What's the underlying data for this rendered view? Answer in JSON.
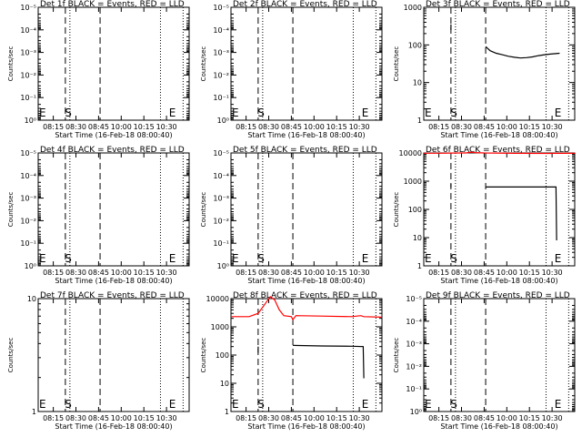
{
  "chart_data": [
    {
      "type": "line",
      "title": "Det 1f BLACK = Events, RED = LLD",
      "xlabel": "Start Time (16-Feb-18 08:00:40)",
      "ylabel": "Counts/sec",
      "scale": "log",
      "ylim": [
        1,
        1e-05
      ],
      "yticks": [
        1,
        0.1,
        0.01,
        0.001,
        0.0001,
        1e-05
      ],
      "ytick_labels": [
        "10⁰",
        "10⁻¹",
        "10⁻²",
        "10⁻³",
        "10⁻⁴",
        "10⁻⁵"
      ],
      "xticks": [
        "08:15",
        "08:30",
        "08:45",
        "10:00",
        "10:15",
        "10:30"
      ],
      "markers": [
        {
          "label": "E",
          "x": 0
        },
        {
          "label": "S",
          "x": 0.85
        },
        {
          "label": "E",
          "x": 4.3
        }
      ],
      "series": []
    },
    {
      "type": "line",
      "title": "Det 2f BLACK = Events, RED = LLD",
      "xlabel": "Start Time (16-Feb-18 08:00:40)",
      "ylabel": "Counts/sec",
      "scale": "log",
      "ylim": [
        1,
        1e-05
      ],
      "yticks": [
        1,
        0.1,
        0.01,
        0.001,
        0.0001,
        1e-05
      ],
      "ytick_labels": [
        "10⁰",
        "10⁻¹",
        "10⁻²",
        "10⁻³",
        "10⁻⁴",
        "10⁻⁵"
      ],
      "xticks": [
        "08:15",
        "08:30",
        "08:45",
        "10:00",
        "10:15",
        "10:30"
      ],
      "markers": [
        {
          "label": "E",
          "x": 0
        },
        {
          "label": "S",
          "x": 0.85
        },
        {
          "label": "E",
          "x": 4.3
        }
      ],
      "series": []
    },
    {
      "type": "line",
      "title": "Det 3f BLACK = Events, RED = LLD",
      "xlabel": "Start Time (16-Feb-18 08:00:40)",
      "ylabel": "Counts/sec",
      "scale": "log",
      "ylim": [
        1,
        1000
      ],
      "yticks": [
        1,
        10,
        100,
        1000
      ],
      "ytick_labels": [
        "1",
        "10",
        "100",
        "1000"
      ],
      "xticks": [
        "08:15",
        "08:30",
        "08:45",
        "10:00",
        "10:15",
        "10:30"
      ],
      "markers": [
        {
          "label": "E",
          "x": 0
        },
        {
          "label": "S",
          "x": 0.85
        },
        {
          "label": "E",
          "x": 4.3
        }
      ],
      "series": [
        {
          "color": "#000000",
          "points": [
            [
              0.9,
              250
            ],
            [
              0.9,
              350
            ]
          ]
        },
        {
          "color": "#000000",
          "points": [
            [
              2.05,
              90
            ],
            [
              2.2,
              70
            ],
            [
              2.4,
              60
            ],
            [
              2.6,
              55
            ],
            [
              2.8,
              50
            ],
            [
              3.0,
              47
            ],
            [
              3.2,
              45
            ],
            [
              3.4,
              46
            ],
            [
              3.6,
              48
            ],
            [
              3.8,
              52
            ],
            [
              4.0,
              55
            ],
            [
              4.2,
              57
            ],
            [
              4.5,
              60
            ]
          ]
        }
      ]
    },
    {
      "type": "line",
      "title": "Det 4f BLACK = Events, RED = LLD",
      "xlabel": "Start Time (16-Feb-18 08:00:40)",
      "ylabel": "Counts/sec",
      "scale": "log",
      "ylim": [
        1,
        1e-05
      ],
      "yticks": [
        1,
        0.1,
        0.01,
        0.001,
        0.0001,
        1e-05
      ],
      "ytick_labels": [
        "10⁰",
        "10⁻¹",
        "10⁻²",
        "10⁻³",
        "10⁻⁴",
        "10⁻⁵"
      ],
      "xticks": [
        "08:15",
        "08:30",
        "08:45",
        "10:00",
        "10:15",
        "10:30"
      ],
      "markers": [
        {
          "label": "E",
          "x": 0
        },
        {
          "label": "S",
          "x": 0.85
        },
        {
          "label": "E",
          "x": 4.3
        }
      ],
      "series": []
    },
    {
      "type": "line",
      "title": "Det 5f BLACK = Events, RED = LLD",
      "xlabel": "Start Time (16-Feb-18 08:00:40)",
      "ylabel": "Counts/sec",
      "scale": "log",
      "ylim": [
        1,
        1e-05
      ],
      "yticks": [
        1,
        0.1,
        0.01,
        0.001,
        0.0001,
        1e-05
      ],
      "ytick_labels": [
        "10⁰",
        "10⁻¹",
        "10⁻²",
        "10⁻³",
        "10⁻⁴",
        "10⁻⁵"
      ],
      "xticks": [
        "08:15",
        "08:30",
        "08:45",
        "10:00",
        "10:15",
        "10:30"
      ],
      "markers": [
        {
          "label": "E",
          "x": 0
        },
        {
          "label": "S",
          "x": 0.85
        },
        {
          "label": "E",
          "x": 4.3
        }
      ],
      "series": []
    },
    {
      "type": "line",
      "title": "Det 6f BLACK = Events, RED = LLD",
      "xlabel": "Start Time (16-Feb-18 08:00:40)",
      "ylabel": "Counts/sec",
      "scale": "log",
      "ylim": [
        1,
        10000
      ],
      "yticks": [
        1,
        10,
        100,
        1000,
        10000
      ],
      "ytick_labels": [
        "1",
        "10",
        "100",
        "1000",
        "10000"
      ],
      "xticks": [
        "08:15",
        "08:30",
        "08:45",
        "10:00",
        "10:15",
        "10:30"
      ],
      "markers": [
        {
          "label": "E",
          "x": 0
        },
        {
          "label": "S",
          "x": 0.85
        },
        {
          "label": "E",
          "x": 4.3
        }
      ],
      "series": [
        {
          "color": "#ff0000",
          "points": [
            [
              0,
              9800
            ],
            [
              0.6,
              9800
            ],
            [
              0.9,
              9900
            ],
            [
              1.4,
              10000
            ],
            [
              1.55,
              10700
            ],
            [
              1.7,
              10300
            ],
            [
              2.0,
              10000
            ],
            [
              3.0,
              9700
            ],
            [
              4.2,
              9600
            ],
            [
              4.3,
              9700
            ],
            [
              5.0,
              9700
            ]
          ]
        },
        {
          "color": "#000000",
          "points": [
            [
              0.9,
              600
            ],
            [
              0.9,
              800
            ]
          ]
        },
        {
          "color": "#000000",
          "points": [
            [
              2.05,
              620
            ],
            [
              3.0,
              620
            ],
            [
              4.0,
              620
            ],
            [
              4.38,
              620
            ],
            [
              4.4,
              8
            ]
          ]
        }
      ]
    },
    {
      "type": "line",
      "title": "Det 7f BLACK = Events, RED = LLD",
      "xlabel": "Start Time (16-Feb-18 08:00:40)",
      "ylabel": "Counts/sec",
      "scale": "log",
      "ylim": [
        1,
        10
      ],
      "yticks": [
        1,
        10
      ],
      "ytick_labels": [
        "1",
        "10"
      ],
      "xticks": [
        "08:15",
        "08:30",
        "08:45",
        "10:00",
        "10:15",
        "10:30"
      ],
      "markers": [
        {
          "label": "E",
          "x": 0
        },
        {
          "label": "S",
          "x": 0.85
        },
        {
          "label": "E",
          "x": 4.3
        }
      ],
      "series": []
    },
    {
      "type": "line",
      "title": "Det 8f BLACK = Events, RED = LLD",
      "xlabel": "Start Time (16-Feb-18 08:00:40)",
      "ylabel": "Counts/sec",
      "scale": "log",
      "ylim": [
        1,
        10000
      ],
      "yticks": [
        1,
        10,
        100,
        1000,
        10000
      ],
      "ytick_labels": [
        "1",
        "10",
        "100",
        "1000",
        "10000"
      ],
      "xticks": [
        "08:15",
        "08:30",
        "08:45",
        "10:00",
        "10:15",
        "10:30"
      ],
      "markers": [
        {
          "label": "E",
          "x": 0
        },
        {
          "label": "S",
          "x": 0.85
        },
        {
          "label": "E",
          "x": 4.3
        }
      ],
      "series": [
        {
          "color": "#ff0000",
          "points": [
            [
              0,
              2300
            ],
            [
              0.6,
              2300
            ],
            [
              0.9,
              3000
            ],
            [
              1.15,
              7000
            ],
            [
              1.3,
              14000
            ],
            [
              1.45,
              9000
            ],
            [
              1.6,
              4000
            ],
            [
              1.75,
              2500
            ],
            [
              2.0,
              2300
            ],
            [
              2.05,
              1800
            ],
            [
              2.15,
              2500
            ],
            [
              3.0,
              2400
            ],
            [
              4.0,
              2300
            ],
            [
              4.3,
              2500
            ],
            [
              4.4,
              2300
            ],
            [
              5.0,
              2200
            ]
          ]
        },
        {
          "color": "#000000",
          "points": [
            [
              0.9,
              120
            ],
            [
              0.9,
              200
            ]
          ]
        },
        {
          "color": "#000000",
          "points": [
            [
              2.05,
              220
            ],
            [
              3.0,
              210
            ],
            [
              4.0,
              205
            ],
            [
              4.38,
              200
            ],
            [
              4.4,
              15
            ]
          ]
        }
      ]
    },
    {
      "type": "line",
      "title": "Det 9f BLACK = Events, RED = LLD",
      "xlabel": "Start Time (16-Feb-18 08:00:40)",
      "ylabel": "Counts/sec",
      "scale": "log",
      "ylim": [
        1,
        1e-05
      ],
      "yticks": [
        1,
        0.1,
        0.01,
        0.001,
        0.0001,
        1e-05
      ],
      "ytick_labels": [
        "10⁰",
        "10⁻¹",
        "10⁻²",
        "10⁻³",
        "10⁻⁴",
        "10⁻⁵"
      ],
      "xticks": [
        "08:15",
        "08:30",
        "08:45",
        "10:00",
        "10:15",
        "10:30"
      ],
      "markers": [
        {
          "label": "E",
          "x": 0
        },
        {
          "label": "S",
          "x": 0.85
        },
        {
          "label": "E",
          "x": 4.3
        }
      ],
      "series": []
    }
  ]
}
